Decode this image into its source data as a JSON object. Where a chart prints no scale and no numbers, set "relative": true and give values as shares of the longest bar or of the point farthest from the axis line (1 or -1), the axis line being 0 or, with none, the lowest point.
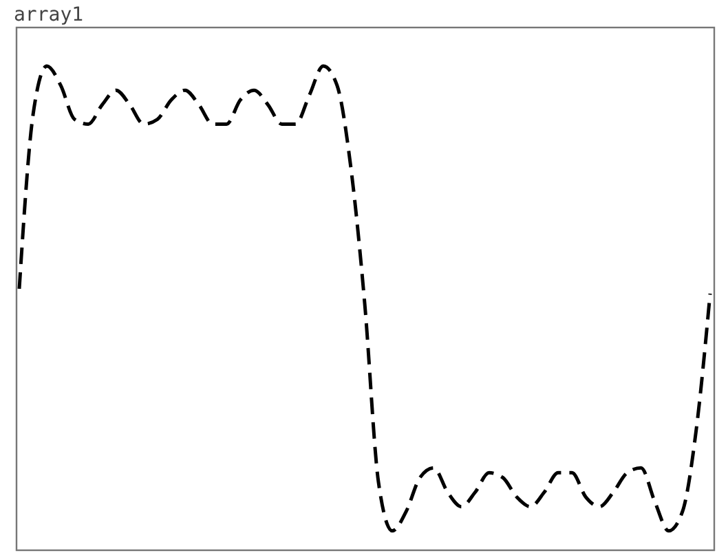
{
  "chart_data": {
    "type": "line",
    "title": "array1",
    "relative": true,
    "line_style": "dashed",
    "categories": [
      null,
      null,
      null,
      null,
      null,
      null,
      null,
      null,
      null,
      null,
      null,
      null,
      null,
      null,
      null,
      null,
      null,
      null,
      null,
      null,
      null,
      null,
      null,
      null,
      null,
      null,
      null,
      null,
      null,
      null,
      null,
      null,
      null,
      null,
      null,
      null,
      null,
      null,
      null,
      null,
      null,
      null,
      null,
      null,
      null,
      null,
      null,
      null,
      null,
      null,
      null
    ],
    "series": [
      {
        "color": "#000000",
        "values": [
          0.54,
          0.9,
          1.0,
          0.96,
          0.89,
          0.88,
          0.92,
          0.95,
          0.92,
          0.88,
          0.89,
          0.93,
          0.95,
          0.92,
          0.88,
          0.88,
          0.93,
          0.95,
          0.92,
          0.88,
          0.88,
          0.94,
          1.0,
          0.96,
          0.79,
          0.51,
          0.14,
          0.04,
          0.08,
          0.15,
          0.17,
          0.12,
          0.09,
          0.12,
          0.16,
          0.15,
          0.11,
          0.09,
          0.12,
          0.16,
          0.16,
          0.11,
          0.09,
          0.12,
          0.16,
          0.17,
          0.1,
          0.04,
          0.08,
          0.25,
          0.53
        ]
      }
    ]
  }
}
